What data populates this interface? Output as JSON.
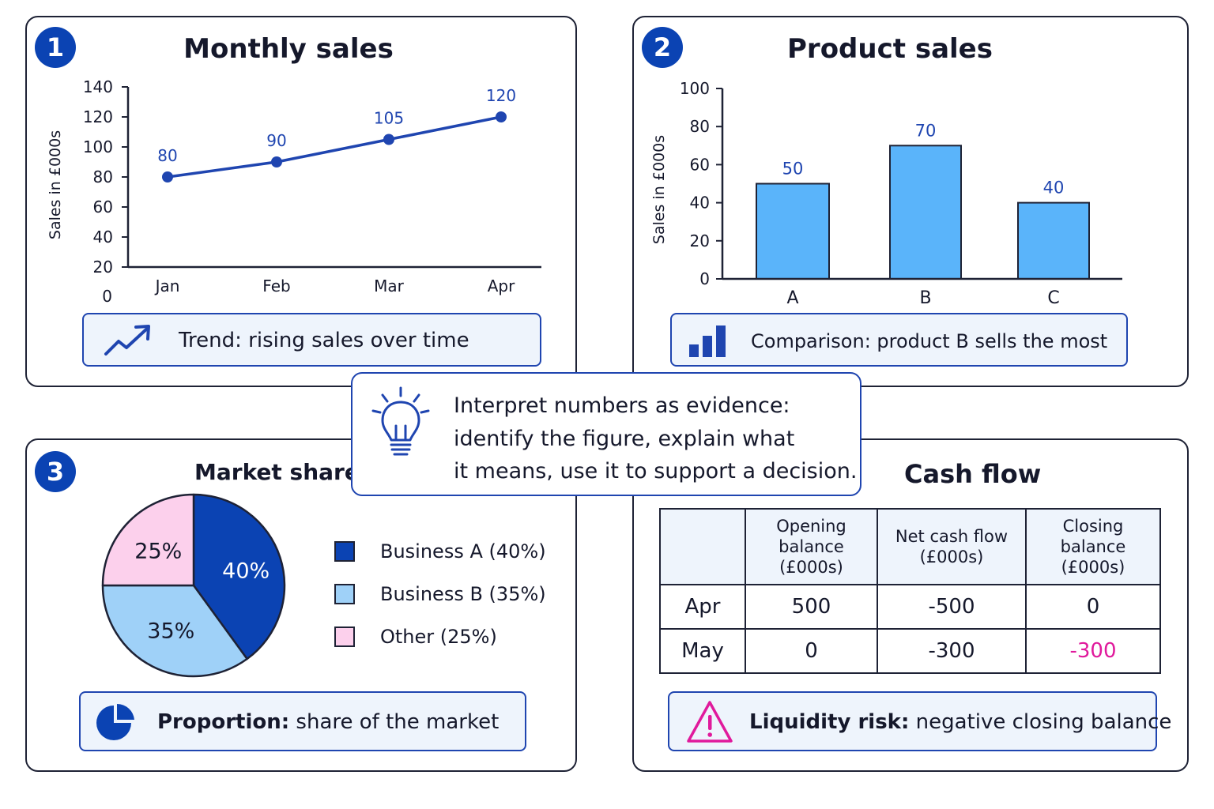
{
  "panels": {
    "monthly": {
      "badge": "1",
      "title": "Monthly sales",
      "callout": "Trend: rising sales over time",
      "callout_icon": "trend-up-icon"
    },
    "product": {
      "badge": "2",
      "title": "Product sales",
      "callout": "Comparison: product B sells the most",
      "callout_icon": "bar-chart-icon"
    },
    "market": {
      "badge": "3",
      "title": "Market share",
      "callout_bold": "Proportion:",
      "callout_rest": " share of the market",
      "callout_icon": "pie-chart-icon"
    },
    "cashflow": {
      "title": "Cash flow",
      "callout_bold": "Liquidity risk:",
      "callout_rest": " negative closing balance",
      "callout_icon": "warning-icon"
    }
  },
  "center": {
    "icon": "lightbulb-icon",
    "lines": [
      "Interpret numbers as evidence:",
      "identify the figure, explain what",
      "it means, use it to support a decision."
    ]
  },
  "colors": {
    "accent": "#0b43b3",
    "line": "#1f45b0",
    "bar": "#5ab4fa",
    "pie_a": "#0b43b3",
    "pie_b": "#9fd1f8",
    "pie_other": "#fcd0ec",
    "negative": "#e01a9c",
    "callout_bg": "#eef4fc"
  },
  "chart_data": [
    {
      "type": "line",
      "title": "Monthly sales",
      "ylabel": "Sales in £000s",
      "xlabel": "",
      "categories": [
        "Jan",
        "Feb",
        "Mar",
        "Apr"
      ],
      "values": [
        80,
        90,
        105,
        120
      ],
      "yticks": [
        20,
        40,
        60,
        80,
        100,
        120,
        140
      ],
      "y_origin_label": "0",
      "ylim": [
        20,
        140
      ],
      "grid": false
    },
    {
      "type": "bar",
      "title": "Product sales",
      "ylabel": "Sales in £000s",
      "xlabel": "",
      "categories": [
        "A",
        "B",
        "C"
      ],
      "values": [
        50,
        70,
        40
      ],
      "yticks": [
        0,
        20,
        40,
        60,
        80,
        100
      ],
      "ylim": [
        0,
        100
      ],
      "grid": false
    },
    {
      "type": "pie",
      "title": "Market share",
      "slices": [
        {
          "label": "Business A",
          "legend": "Business A (40%)",
          "value": 40,
          "display": "40%"
        },
        {
          "label": "Business B",
          "legend": "Business B (35%)",
          "value": 35,
          "display": "35%"
        },
        {
          "label": "Other",
          "legend": "Other (25%)",
          "value": 25,
          "display": "25%"
        }
      ],
      "legend_position": "right"
    },
    {
      "type": "table",
      "title": "Cash flow",
      "columns": [
        "",
        "Opening balance (£000s)",
        "Net cash flow (£000s)",
        "Closing balance (£000s)"
      ],
      "header_lines": [
        [
          ""
        ],
        [
          "Opening",
          "balance",
          "(£000s)"
        ],
        [
          "Net cash flow",
          "(£000s)"
        ],
        [
          "Closing",
          "balance",
          "(£000s)"
        ]
      ],
      "rows": [
        [
          "Apr",
          "500",
          "-500",
          "0"
        ],
        [
          "May",
          "0",
          "-300",
          "-300"
        ]
      ]
    }
  ]
}
